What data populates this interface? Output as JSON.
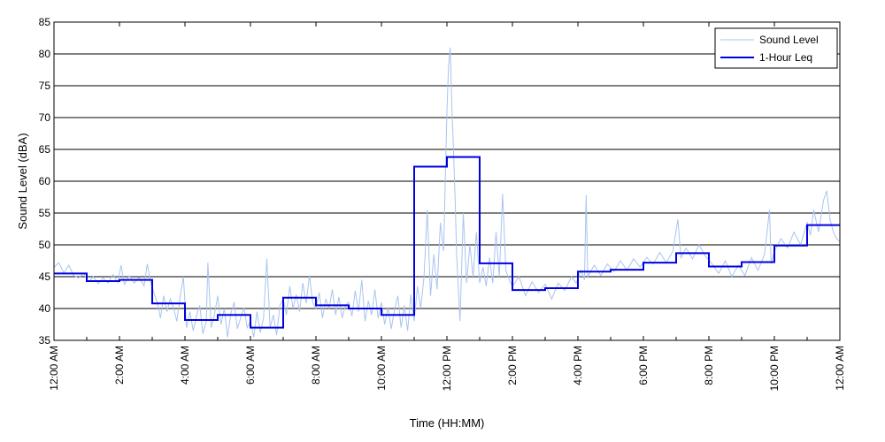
{
  "chart_data": {
    "type": "line",
    "xlabel": "Time (HH:MM)",
    "ylabel": "Sound Level (dBA)",
    "ylim": [
      35,
      85
    ],
    "xlim": [
      0,
      24
    ],
    "grid": "horizontal",
    "legend_position": "top-right",
    "y_ticks": [
      35,
      40,
      45,
      50,
      55,
      60,
      65,
      70,
      75,
      80,
      85
    ],
    "x_ticks": [
      {
        "x": 0,
        "label": "12:00 AM"
      },
      {
        "x": 2,
        "label": "2:00 AM"
      },
      {
        "x": 4,
        "label": "4:00 AM"
      },
      {
        "x": 6,
        "label": "6:00 AM"
      },
      {
        "x": 8,
        "label": "8:00 AM"
      },
      {
        "x": 10,
        "label": "10:00 AM"
      },
      {
        "x": 12,
        "label": "12:00 PM"
      },
      {
        "x": 14,
        "label": "2:00 PM"
      },
      {
        "x": 16,
        "label": "4:00 PM"
      },
      {
        "x": 18,
        "label": "6:00 PM"
      },
      {
        "x": 20,
        "label": "8:00 PM"
      },
      {
        "x": 22,
        "label": "10:00 PM"
      },
      {
        "x": 24,
        "label": "12:00 AM"
      }
    ],
    "series": [
      {
        "name": "Sound Level",
        "color": "#a9c4ee",
        "style": "thin",
        "points": [
          [
            0.0,
            46.5
          ],
          [
            0.15,
            47.2
          ],
          [
            0.3,
            45.6
          ],
          [
            0.45,
            46.8
          ],
          [
            0.6,
            45.2
          ],
          [
            0.75,
            44.8
          ],
          [
            0.9,
            45.5
          ],
          [
            1.05,
            44.2
          ],
          [
            1.2,
            45.0
          ],
          [
            1.35,
            43.9
          ],
          [
            1.5,
            44.8
          ],
          [
            1.65,
            44.0
          ],
          [
            1.8,
            45.3
          ],
          [
            1.95,
            44.1
          ],
          [
            2.05,
            46.8
          ],
          [
            2.15,
            43.8
          ],
          [
            2.3,
            45.2
          ],
          [
            2.45,
            44.0
          ],
          [
            2.6,
            44.9
          ],
          [
            2.75,
            43.6
          ],
          [
            2.85,
            47.0
          ],
          [
            2.95,
            44.2
          ],
          [
            3.05,
            42.5
          ],
          [
            3.15,
            41.0
          ],
          [
            3.25,
            38.5
          ],
          [
            3.35,
            42.0
          ],
          [
            3.45,
            39.5
          ],
          [
            3.55,
            41.5
          ],
          [
            3.65,
            40.2
          ],
          [
            3.75,
            38.0
          ],
          [
            3.85,
            41.8
          ],
          [
            3.95,
            45.0
          ],
          [
            4.05,
            37.0
          ],
          [
            4.15,
            39.5
          ],
          [
            4.25,
            36.5
          ],
          [
            4.35,
            38.8
          ],
          [
            4.45,
            40.5
          ],
          [
            4.55,
            36.0
          ],
          [
            4.65,
            38.0
          ],
          [
            4.7,
            47.2
          ],
          [
            4.8,
            37.0
          ],
          [
            4.9,
            39.0
          ],
          [
            5.0,
            42.0
          ],
          [
            5.1,
            37.5
          ],
          [
            5.2,
            40.0
          ],
          [
            5.3,
            35.5
          ],
          [
            5.4,
            39.2
          ],
          [
            5.5,
            41.0
          ],
          [
            5.6,
            36.8
          ],
          [
            5.7,
            38.5
          ],
          [
            5.8,
            40.2
          ],
          [
            5.9,
            37.0
          ],
          [
            6.0,
            38.0
          ],
          [
            6.1,
            35.5
          ],
          [
            6.2,
            39.5
          ],
          [
            6.3,
            36.2
          ],
          [
            6.4,
            38.5
          ],
          [
            6.5,
            47.8
          ],
          [
            6.6,
            37.0
          ],
          [
            6.7,
            39.0
          ],
          [
            6.8,
            35.8
          ],
          [
            6.9,
            40.5
          ],
          [
            7.0,
            41.5
          ],
          [
            7.1,
            39.0
          ],
          [
            7.2,
            43.5
          ],
          [
            7.3,
            40.0
          ],
          [
            7.4,
            42.2
          ],
          [
            7.5,
            39.5
          ],
          [
            7.6,
            44.0
          ],
          [
            7.7,
            40.8
          ],
          [
            7.8,
            45.2
          ],
          [
            7.9,
            41.0
          ],
          [
            8.0,
            40.0
          ],
          [
            8.1,
            42.5
          ],
          [
            8.2,
            38.5
          ],
          [
            8.3,
            41.5
          ],
          [
            8.4,
            40.0
          ],
          [
            8.5,
            43.0
          ],
          [
            8.6,
            39.0
          ],
          [
            8.7,
            41.8
          ],
          [
            8.8,
            38.5
          ],
          [
            8.9,
            40.5
          ],
          [
            9.0,
            41.0
          ],
          [
            9.1,
            38.8
          ],
          [
            9.2,
            42.8
          ],
          [
            9.3,
            39.5
          ],
          [
            9.4,
            44.5
          ],
          [
            9.5,
            38.0
          ],
          [
            9.6,
            41.2
          ],
          [
            9.7,
            39.0
          ],
          [
            9.8,
            43.0
          ],
          [
            9.9,
            38.5
          ],
          [
            10.0,
            41.0
          ],
          [
            10.1,
            37.5
          ],
          [
            10.2,
            40.2
          ],
          [
            10.3,
            36.8
          ],
          [
            10.4,
            39.8
          ],
          [
            10.5,
            42.0
          ],
          [
            10.6,
            37.0
          ],
          [
            10.7,
            40.5
          ],
          [
            10.8,
            36.5
          ],
          [
            10.9,
            42.2
          ],
          [
            11.0,
            38.0
          ],
          [
            11.1,
            43.5
          ],
          [
            11.2,
            40.0
          ],
          [
            11.3,
            45.0
          ],
          [
            11.4,
            55.5
          ],
          [
            11.5,
            42.0
          ],
          [
            11.6,
            48.5
          ],
          [
            11.7,
            43.0
          ],
          [
            11.8,
            53.5
          ],
          [
            11.9,
            49.0
          ],
          [
            11.95,
            60.0
          ],
          [
            12.0,
            71.0
          ],
          [
            12.05,
            78.0
          ],
          [
            12.1,
            81.0
          ],
          [
            12.15,
            72.0
          ],
          [
            12.2,
            65.0
          ],
          [
            12.25,
            57.0
          ],
          [
            12.3,
            48.0
          ],
          [
            12.4,
            38.0
          ],
          [
            12.5,
            55.0
          ],
          [
            12.6,
            44.0
          ],
          [
            12.7,
            50.0
          ],
          [
            12.8,
            45.0
          ],
          [
            12.9,
            52.0
          ],
          [
            13.0,
            44.0
          ],
          [
            13.1,
            46.5
          ],
          [
            13.2,
            43.5
          ],
          [
            13.3,
            48.0
          ],
          [
            13.4,
            44.0
          ],
          [
            13.5,
            52.0
          ],
          [
            13.6,
            45.0
          ],
          [
            13.7,
            58.0
          ],
          [
            13.8,
            46.0
          ],
          [
            13.9,
            44.5
          ],
          [
            14.0,
            43.5
          ],
          [
            14.2,
            45.0
          ],
          [
            14.4,
            42.0
          ],
          [
            14.6,
            44.2
          ],
          [
            14.8,
            42.5
          ],
          [
            15.0,
            43.8
          ],
          [
            15.2,
            41.5
          ],
          [
            15.4,
            44.0
          ],
          [
            15.6,
            42.8
          ],
          [
            15.8,
            45.0
          ],
          [
            15.95,
            44.0
          ],
          [
            16.1,
            46.0
          ],
          [
            16.2,
            44.5
          ],
          [
            16.25,
            57.8
          ],
          [
            16.3,
            45.0
          ],
          [
            16.5,
            46.8
          ],
          [
            16.7,
            45.2
          ],
          [
            16.9,
            47.0
          ],
          [
            17.1,
            45.8
          ],
          [
            17.3,
            47.5
          ],
          [
            17.5,
            46.0
          ],
          [
            17.7,
            47.8
          ],
          [
            17.9,
            46.5
          ],
          [
            18.1,
            48.0
          ],
          [
            18.3,
            47.0
          ],
          [
            18.5,
            48.8
          ],
          [
            18.7,
            47.2
          ],
          [
            18.9,
            49.0
          ],
          [
            19.05,
            54.0
          ],
          [
            19.15,
            48.0
          ],
          [
            19.3,
            49.5
          ],
          [
            19.5,
            47.8
          ],
          [
            19.7,
            50.0
          ],
          [
            19.9,
            48.2
          ],
          [
            20.1,
            47.0
          ],
          [
            20.3,
            45.5
          ],
          [
            20.5,
            47.5
          ],
          [
            20.7,
            45.0
          ],
          [
            20.9,
            46.8
          ],
          [
            21.1,
            45.2
          ],
          [
            21.3,
            48.0
          ],
          [
            21.5,
            46.0
          ],
          [
            21.7,
            48.5
          ],
          [
            21.9,
            47.0
          ],
          [
            21.85,
            55.5
          ],
          [
            22.0,
            49.0
          ],
          [
            22.2,
            51.0
          ],
          [
            22.4,
            49.5
          ],
          [
            22.6,
            52.0
          ],
          [
            22.8,
            50.0
          ],
          [
            23.0,
            53.5
          ],
          [
            23.1,
            51.5
          ],
          [
            23.2,
            55.5
          ],
          [
            23.35,
            52.0
          ],
          [
            23.5,
            57.0
          ],
          [
            23.6,
            58.5
          ],
          [
            23.7,
            54.0
          ],
          [
            23.8,
            52.0
          ],
          [
            23.9,
            51.0
          ],
          [
            24.0,
            50.5
          ]
        ]
      },
      {
        "name": "1-Hour Leq",
        "color": "#0000e0",
        "style": "step",
        "hourly_values": [
          45.5,
          44.3,
          44.5,
          40.8,
          38.2,
          39.0,
          37.0,
          41.7,
          40.5,
          40.0,
          39.0,
          62.3,
          63.8,
          47.1,
          42.9,
          43.2,
          45.8,
          46.1,
          47.2,
          48.7,
          46.6,
          47.3,
          49.9,
          53.1
        ]
      }
    ]
  }
}
